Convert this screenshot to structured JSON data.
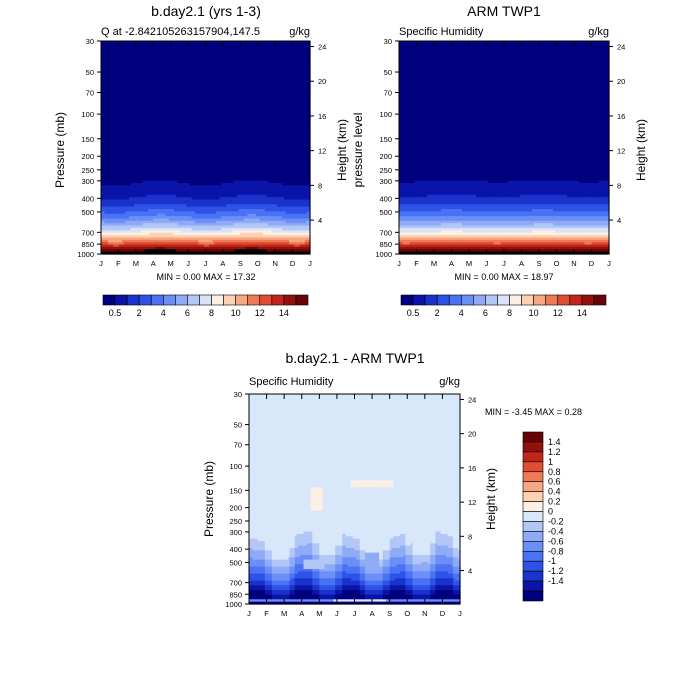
{
  "palette": {
    "abs": [
      "#00007f",
      "#0a14a8",
      "#1a33cc",
      "#2e52e6",
      "#4a72f5",
      "#6b8ff7",
      "#8fabf7",
      "#b3c7f7",
      "#d8e3fa",
      "#fcefe3",
      "#fcd2b3",
      "#f7a883",
      "#ef7a57",
      "#e04d31",
      "#c0261a",
      "#93100c",
      "#6a0305"
    ],
    "diff": [
      "#00007f",
      "#0a14a8",
      "#1a33cc",
      "#2e52e6",
      "#4a72f5",
      "#6b8ff7",
      "#8fabf7",
      "#b3c7f7",
      "#d8e7fa",
      "#fcefe3",
      "#fcd2b3",
      "#f7a883",
      "#ef7a57",
      "#e04d31",
      "#c0261a",
      "#93100c",
      "#6a0305"
    ]
  },
  "months": [
    "J",
    "F",
    "M",
    "A",
    "M",
    "J",
    "J",
    "A",
    "S",
    "O",
    "N",
    "D",
    "J"
  ],
  "pressure_ticks": [
    "30",
    "50",
    "70",
    "100",
    "150",
    "200",
    "250",
    "300",
    "400",
    "500",
    "700",
    "850",
    "1000"
  ],
  "height_ticks": [
    "24",
    "20",
    "16",
    "12",
    "8",
    "4"
  ],
  "colorbar_abs_labels": [
    "0.5",
    "2",
    "4",
    "6",
    "8",
    "10",
    "12",
    "14"
  ],
  "colorbar_diff_labels": [
    "1.4",
    "1.2",
    "1",
    "0.8",
    "0.6",
    "0.4",
    "0.2",
    "0",
    "-0.2",
    "-0.4",
    "-0.6",
    "-0.8",
    "-1",
    "-1.2",
    "-1.4"
  ],
  "chart_data": [
    {
      "type": "heatmap",
      "title": "b.day2.1 (yrs 1-3)",
      "left_label": "Q at -2.842105263157904,147.5",
      "right_label": "g/kg",
      "ylabel": "Pressure (mb)",
      "y2label": "Height (km)",
      "xlabel": "",
      "minmax": "MIN =   0.00 MAX =  17.32",
      "min": 0.0,
      "max": 17.32,
      "x": [
        "J",
        "F",
        "M",
        "A",
        "M",
        "J",
        "J",
        "A",
        "S",
        "O",
        "N",
        "D",
        "J"
      ],
      "y": [
        "30",
        "50",
        "70",
        "100",
        "150",
        "200",
        "250",
        "300",
        "400",
        "500",
        "700",
        "850",
        "1000"
      ]
    },
    {
      "type": "heatmap",
      "title": "ARM TWP1",
      "left_label": "Specific Humidity",
      "right_label": "g/kg",
      "ylabel": "pressure level",
      "y2label": "Height (km)",
      "xlabel": "",
      "minmax": "MIN =   0.00 MAX =  18.97",
      "min": 0.0,
      "max": 18.97,
      "x": [
        "J",
        "F",
        "M",
        "A",
        "M",
        "J",
        "J",
        "A",
        "S",
        "O",
        "N",
        "D",
        "J"
      ],
      "y": [
        "30",
        "50",
        "70",
        "100",
        "150",
        "200",
        "250",
        "300",
        "400",
        "500",
        "700",
        "850",
        "1000"
      ]
    },
    {
      "type": "heatmap",
      "title": "b.day2.1 - ARM TWP1",
      "left_label": "Specific Humidity",
      "right_label": "g/kg",
      "ylabel": "Pressure (mb)",
      "y2label": "Height (km)",
      "xlabel": "",
      "minmax": "MIN =  -3.45 MAX =   0.28",
      "min": -3.45,
      "max": 0.28,
      "x": [
        "J",
        "F",
        "M",
        "A",
        "M",
        "J",
        "J",
        "A",
        "S",
        "O",
        "N",
        "D",
        "J"
      ],
      "y": [
        "30",
        "50",
        "70",
        "100",
        "150",
        "200",
        "250",
        "300",
        "400",
        "500",
        "700",
        "850",
        "1000"
      ]
    }
  ]
}
